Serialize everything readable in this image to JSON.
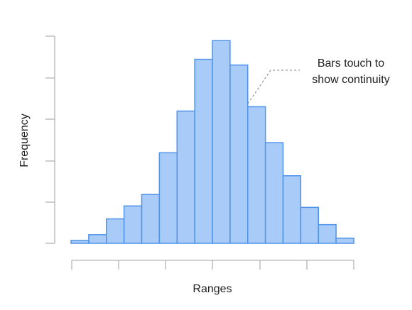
{
  "chart_data": {
    "type": "bar",
    "title": "",
    "xlabel": "Ranges",
    "ylabel": "Frequency",
    "values": [
      1,
      3,
      8.5,
      13,
      17,
      31.5,
      46,
      64,
      70.5,
      62,
      47.5,
      35,
      23.5,
      12.5,
      6.5,
      1.8
    ],
    "ylim": [
      0,
      75
    ],
    "grid": false,
    "annotation": {
      "lines": [
        "Bars touch to",
        "show continuity"
      ]
    },
    "colors": {
      "bar_fill": "#a9cbf7",
      "bar_stroke": "#4f93ea",
      "axis": "#b3b3b3"
    }
  }
}
